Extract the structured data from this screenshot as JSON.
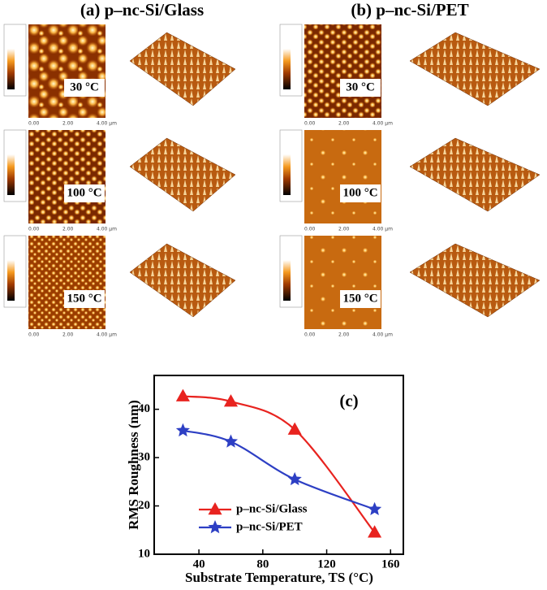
{
  "panels": [
    {
      "title": "(a) p–nc-Si/Glass",
      "scale_ticks": [
        "0.00",
        "2.00",
        "4.00 µm"
      ],
      "images": [
        {
          "label": "30 °C"
        },
        {
          "label": "100 °C"
        },
        {
          "label": "150 °C"
        }
      ]
    },
    {
      "title": "(b) p–nc-Si/PET",
      "scale_ticks": [
        "0.00",
        "2.00",
        "4.00 µm"
      ],
      "images": [
        {
          "label": "30 °C"
        },
        {
          "label": "100 °C"
        },
        {
          "label": "150 °C"
        }
      ]
    }
  ],
  "chart_data": {
    "type": "line",
    "annotation": "(c)",
    "x_label": "Substrate Temperature, TS (°C)",
    "y_label": "RMS Roughness (nm)",
    "x": [
      30,
      60,
      100,
      150
    ],
    "series": [
      {
        "name": "p–nc-Si/Glass",
        "color": "#e8231f",
        "marker": "triangle",
        "values": [
          42.7,
          41.6,
          35.8,
          14.5
        ]
      },
      {
        "name": "p–nc-Si/PET",
        "color": "#2d3fc4",
        "marker": "star",
        "values": [
          35.6,
          33.3,
          25.5,
          19.3
        ]
      }
    ],
    "xlim": [
      12,
      168
    ],
    "ylim": [
      10,
      47
    ],
    "xticks": [
      40,
      80,
      120,
      160
    ],
    "yticks": [
      10,
      20,
      30,
      40
    ],
    "legend": "lower left"
  }
}
